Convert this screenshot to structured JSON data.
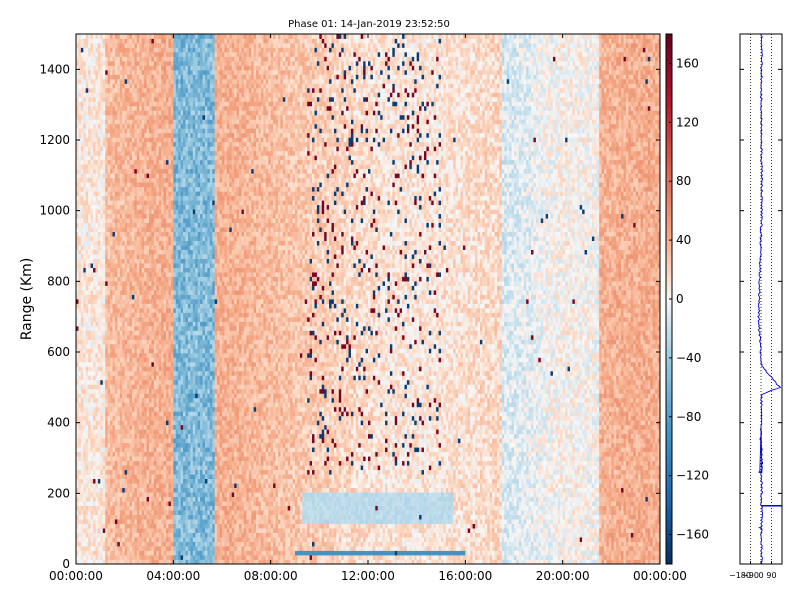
{
  "chart_data": [
    {
      "type": "heatmap",
      "title": "Phase 01: 14-Jan-2019 23:52:50",
      "xlabel": "",
      "ylabel": "Range (Km)",
      "xlim": [
        "00:00:00",
        "24:00:00"
      ],
      "ylim": [
        0,
        1500
      ],
      "x_ticks": [
        "00:00:00",
        "04:00:00",
        "08:00:00",
        "12:00:00",
        "16:00:00",
        "20:00:00",
        "00:00:00"
      ],
      "y_ticks": [
        0,
        200,
        400,
        600,
        800,
        1000,
        1200,
        1400
      ],
      "colormap": "RdBu_r",
      "colorbar": {
        "range": [
          -180,
          180
        ],
        "ticks": [
          -160,
          -120,
          -80,
          -40,
          0,
          40,
          80,
          120,
          160
        ]
      },
      "features": [
        {
          "kind": "vertical band",
          "x_range": [
            "04:00:00",
            "05:40:00"
          ],
          "phase_deg": -60
        },
        {
          "kind": "noisy spikes",
          "x_range": [
            "09:30:00",
            "15:00:00"
          ],
          "phase_deg": [
            -180,
            180
          ]
        },
        {
          "kind": "horizontal band",
          "x_range": [
            "09:30:00",
            "15:30:00"
          ],
          "y_range": [
            110,
            200
          ],
          "phase_deg": -30
        },
        {
          "kind": "horizontal strip",
          "x_range": [
            "09:00:00",
            "16:00:00"
          ],
          "y_range": [
            30,
            40
          ],
          "phase_deg": -90
        }
      ],
      "background_phase_deg": [
        20,
        60
      ]
    },
    {
      "type": "line",
      "title": "",
      "xlabel": "",
      "ylabel": "",
      "xlim": [
        -180,
        180
      ],
      "ylim": [
        0,
        1500
      ],
      "x_ticks": [
        "-180",
        "-90",
        "0",
        "90"
      ],
      "gridlines_x": [
        -90,
        0,
        90
      ],
      "series": [
        {
          "values_note_free": true,
          "x": [
            5,
            3,
            10,
            2,
            6,
            4,
            8,
            -2,
            5,
            160,
            5,
            -20,
            6,
            3
          ],
          "y": [
            0,
            100,
            160,
            170,
            200,
            240,
            300,
            360,
            480,
            500,
            560,
            700,
            1000,
            1500
          ]
        }
      ]
    }
  ],
  "colors": {
    "line": "#0000cc"
  }
}
